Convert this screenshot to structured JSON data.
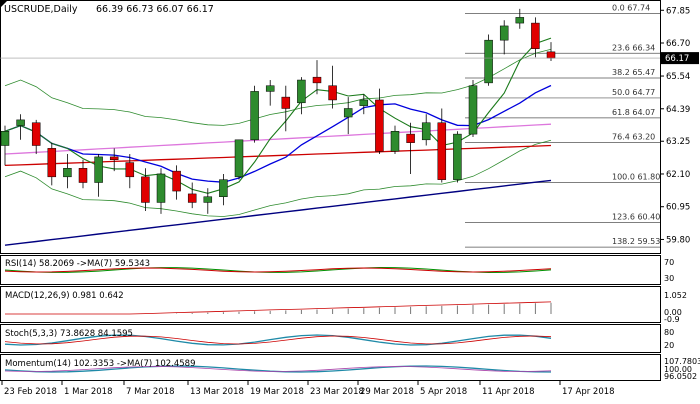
{
  "header": {
    "symbol": "USCRUDE,Daily",
    "ohlc": "66.39 66.73 66.07 66.17"
  },
  "price_axis": {
    "ticks": [
      "67.85",
      "66.70",
      "65.54",
      "64.39",
      "63.25",
      "62.10",
      "60.95",
      "59.80"
    ],
    "current_price": "66.17",
    "current_price_color": "#000000"
  },
  "fib_levels": [
    {
      "ratio": "0.0",
      "price": "67.74"
    },
    {
      "ratio": "23.6",
      "price": "66.34"
    },
    {
      "ratio": "38.2",
      "price": "65.47"
    },
    {
      "ratio": "50.0",
      "price": "64.77"
    },
    {
      "ratio": "61.8",
      "price": "64.07"
    },
    {
      "ratio": "76.4",
      "price": "63.20"
    },
    {
      "ratio": "100.0",
      "price": "61.80"
    },
    {
      "ratio": "123.6",
      "price": "60.40"
    },
    {
      "ratio": "138.2",
      "price": "59.53"
    }
  ],
  "date_axis": [
    "23 Feb 2018",
    "1 Mar 2018",
    "7 Mar 2018",
    "13 Mar 2018",
    "19 Mar 2018",
    "23 Mar 2018",
    "29 Mar 2018",
    "5 Apr 2018",
    "11 Apr 2018",
    "17 Apr 2018"
  ],
  "panels": {
    "rsi": {
      "label": "RSI(14) 58.2069 ->MA(7) 59.5343",
      "ticks": [
        "70",
        "30"
      ]
    },
    "macd": {
      "label": "MACD(12,26,9) 0.981 0.642",
      "ticks": [
        "1.052",
        "0.00",
        "-0.9"
      ]
    },
    "stoch": {
      "label": "Stoch(5,3,3) 73.8628 84.1595",
      "ticks": [
        "80",
        "20"
      ]
    },
    "momentum": {
      "label": "Momentum(14) 102.3353 ->MA(7) 102.4589",
      "ticks": [
        "107.7803",
        "100.00",
        "96.0502"
      ]
    }
  },
  "colors": {
    "bull": "#2e8b2e",
    "bear": "#e00000",
    "ma_blue": "#0000dd",
    "ma_navy": "#000080",
    "ma_green": "#1a7a1a",
    "ma_magenta": "#cc00cc",
    "ma_violet": "#dd77dd",
    "ma_red": "#cc0000",
    "bollinger": "#2e8b2e"
  },
  "chart_data": {
    "type": "candlestick",
    "candles": [
      {
        "o": 63.1,
        "h": 63.8,
        "l": 62.4,
        "c": 63.6
      },
      {
        "o": 63.8,
        "h": 64.2,
        "l": 63.3,
        "c": 64.0
      },
      {
        "o": 63.9,
        "h": 64.0,
        "l": 62.8,
        "c": 63.1
      },
      {
        "o": 63.0,
        "h": 63.2,
        "l": 61.7,
        "c": 62.0
      },
      {
        "o": 62.0,
        "h": 62.8,
        "l": 61.6,
        "c": 62.3
      },
      {
        "o": 62.3,
        "h": 62.6,
        "l": 61.6,
        "c": 61.8
      },
      {
        "o": 61.8,
        "h": 62.8,
        "l": 61.3,
        "c": 62.7
      },
      {
        "o": 62.7,
        "h": 63.0,
        "l": 62.2,
        "c": 62.6
      },
      {
        "o": 62.5,
        "h": 62.8,
        "l": 61.6,
        "c": 62.0
      },
      {
        "o": 62.0,
        "h": 62.3,
        "l": 60.8,
        "c": 61.1
      },
      {
        "o": 61.1,
        "h": 62.3,
        "l": 60.7,
        "c": 62.1
      },
      {
        "o": 62.2,
        "h": 62.4,
        "l": 61.2,
        "c": 61.5
      },
      {
        "o": 61.4,
        "h": 61.8,
        "l": 60.9,
        "c": 61.1
      },
      {
        "o": 61.1,
        "h": 61.6,
        "l": 60.7,
        "c": 61.3
      },
      {
        "o": 61.3,
        "h": 62.1,
        "l": 61.0,
        "c": 61.9
      },
      {
        "o": 62.0,
        "h": 63.3,
        "l": 61.9,
        "c": 63.3
      },
      {
        "o": 63.3,
        "h": 65.2,
        "l": 63.2,
        "c": 65.0
      },
      {
        "o": 65.0,
        "h": 65.4,
        "l": 64.5,
        "c": 65.2
      },
      {
        "o": 64.8,
        "h": 65.2,
        "l": 63.6,
        "c": 64.4
      },
      {
        "o": 64.6,
        "h": 65.5,
        "l": 64.2,
        "c": 65.4
      },
      {
        "o": 65.5,
        "h": 66.1,
        "l": 64.9,
        "c": 65.3
      },
      {
        "o": 65.2,
        "h": 65.9,
        "l": 64.4,
        "c": 64.7
      },
      {
        "o": 64.1,
        "h": 64.8,
        "l": 63.5,
        "c": 64.4
      },
      {
        "o": 64.5,
        "h": 64.9,
        "l": 64.2,
        "c": 64.7
      },
      {
        "o": 64.7,
        "h": 65.1,
        "l": 62.8,
        "c": 62.9
      },
      {
        "o": 62.9,
        "h": 63.8,
        "l": 62.8,
        "c": 63.6
      },
      {
        "o": 63.5,
        "h": 63.9,
        "l": 62.1,
        "c": 63.2
      },
      {
        "o": 63.3,
        "h": 64.2,
        "l": 63.1,
        "c": 63.9
      },
      {
        "o": 63.9,
        "h": 64.4,
        "l": 61.8,
        "c": 61.9
      },
      {
        "o": 61.9,
        "h": 63.6,
        "l": 61.8,
        "c": 63.5
      },
      {
        "o": 63.5,
        "h": 65.4,
        "l": 63.4,
        "c": 65.2
      },
      {
        "o": 65.3,
        "h": 67.0,
        "l": 65.2,
        "c": 66.8
      },
      {
        "o": 66.8,
        "h": 67.5,
        "l": 66.3,
        "c": 67.3
      },
      {
        "o": 67.4,
        "h": 67.9,
        "l": 67.2,
        "c": 67.6
      },
      {
        "o": 67.4,
        "h": 67.6,
        "l": 66.2,
        "c": 66.5
      },
      {
        "o": 66.39,
        "h": 66.73,
        "l": 66.07,
        "c": 66.17
      }
    ],
    "ylim": [
      59.5,
      68.0
    ]
  }
}
